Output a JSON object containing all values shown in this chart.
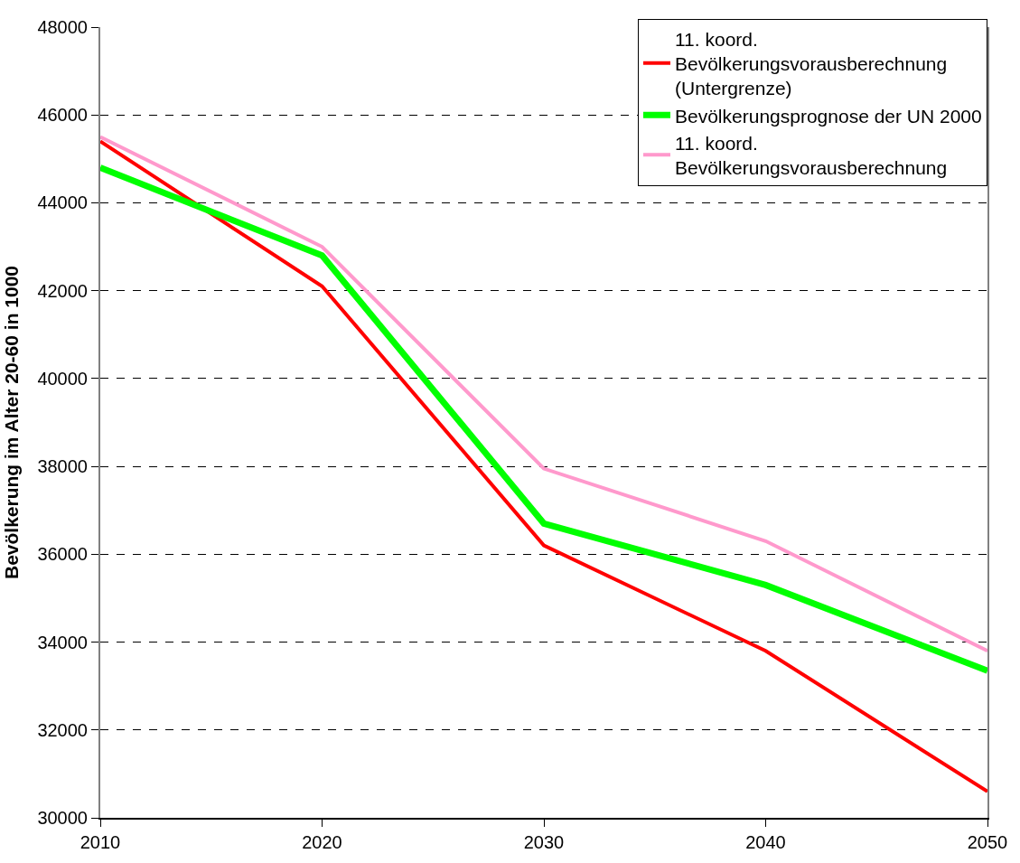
{
  "chart_data": {
    "type": "line",
    "ylabel": "Bevölkerung im Alter 20-60 in 1000",
    "x": [
      2010,
      2020,
      2030,
      2040,
      2050
    ],
    "series": [
      {
        "name": "11. koord.\nBevölkerungsvorausberechnung\n(Untergrenze)",
        "color": "#ff0000",
        "values": [
          45400,
          42100,
          36200,
          33800,
          30600
        ]
      },
      {
        "name": "Bevölkerungsprognose der UN 2000",
        "color": "#00ff00",
        "values": [
          44800,
          42800,
          36700,
          35300,
          33350
        ]
      },
      {
        "name": "11. koord.\nBevölkerungsvorausberechnung",
        "color": "#ff99cc",
        "values": [
          45500,
          43000,
          37950,
          36300,
          33800
        ]
      }
    ],
    "xlim": [
      2010,
      2050
    ],
    "xticks": [
      2010,
      2020,
      2030,
      2040,
      2050
    ],
    "ylim": [
      30000,
      48000
    ],
    "yticks": [
      30000,
      32000,
      34000,
      36000,
      38000,
      40000,
      42000,
      44000,
      46000,
      48000
    ],
    "grid": "y",
    "legend": "top right",
    "marker": "none",
    "line_style": "solid"
  }
}
